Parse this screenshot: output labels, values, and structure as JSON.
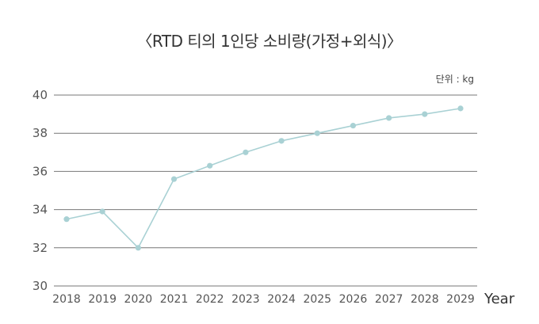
{
  "chart_data": {
    "type": "line",
    "title": "〈RTD 티의 1인당 소비량(가정+외식)〉",
    "unit_label": "단위 : kg",
    "xlabel": "Year",
    "ylabel": "",
    "categories": [
      "2018",
      "2019",
      "2020",
      "2021",
      "2022",
      "2023",
      "2024",
      "2025",
      "2026",
      "2027",
      "2028",
      "2029"
    ],
    "series": [
      {
        "values": [
          33.5,
          33.9,
          32.0,
          35.6,
          36.3,
          37.0,
          37.6,
          38.0,
          38.4,
          38.8,
          39.0,
          39.3
        ]
      }
    ],
    "ylim": [
      30,
      40
    ],
    "yticks": [
      30,
      32,
      34,
      36,
      38,
      40
    ],
    "grid": true,
    "line_color": "#a9d1d4",
    "marker_color": "#a9d1d4",
    "grid_color": "#777777"
  }
}
